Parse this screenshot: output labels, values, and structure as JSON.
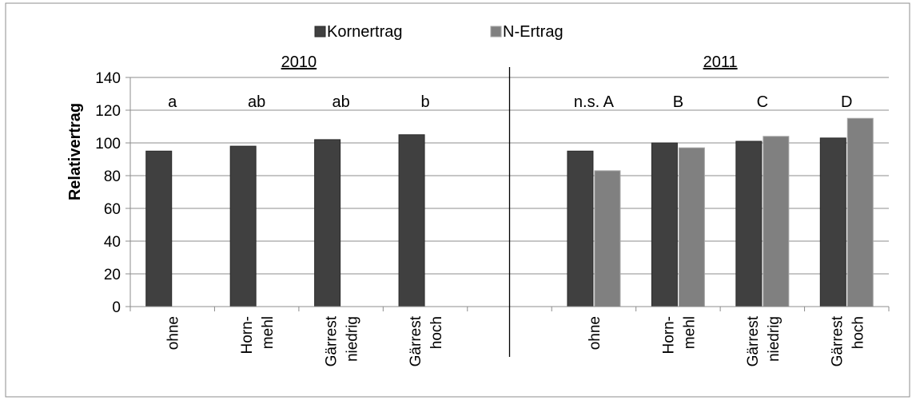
{
  "chart_data": {
    "type": "bar",
    "ylabel": "Relativertrag",
    "ylim": [
      0,
      140
    ],
    "yticks": [
      0,
      20,
      40,
      60,
      80,
      100,
      120,
      140
    ],
    "grid": true,
    "legend_position": "top-center",
    "series": [
      {
        "name": "Kornertrag",
        "color": "#404040"
      },
      {
        "name": "N-Ertrag",
        "color": "#808080"
      }
    ],
    "groups": [
      {
        "label": "2010",
        "categories": [
          {
            "label_lines": [
              "ohne"
            ],
            "annotation": "a",
            "values": [
              95,
              null
            ]
          },
          {
            "label_lines": [
              "Horn-",
              "mehl"
            ],
            "annotation": "ab",
            "values": [
              98,
              null
            ]
          },
          {
            "label_lines": [
              "Gärrest",
              "niedrig"
            ],
            "annotation": "ab",
            "values": [
              102,
              null
            ]
          },
          {
            "label_lines": [
              "Gärrest",
              "hoch"
            ],
            "annotation": "b",
            "values": [
              105,
              null
            ]
          }
        ]
      },
      {
        "label": "2011",
        "categories": [
          {
            "label_lines": [
              "ohne"
            ],
            "annotation": "n.s.  A",
            "values": [
              95,
              83
            ]
          },
          {
            "label_lines": [
              "Horn-",
              "mehl"
            ],
            "annotation": "B",
            "values": [
              100,
              97
            ]
          },
          {
            "label_lines": [
              "Gärrest",
              "niedrig"
            ],
            "annotation": "C",
            "values": [
              101,
              104
            ]
          },
          {
            "label_lines": [
              "Gärrest",
              "hoch"
            ],
            "annotation": "D",
            "values": [
              103,
              115
            ]
          }
        ]
      }
    ]
  }
}
